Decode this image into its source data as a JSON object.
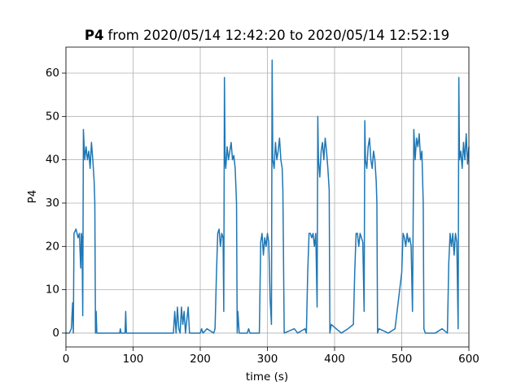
{
  "chart_data": {
    "type": "line",
    "title": {
      "name": "P4",
      "text": "from 2020/05/14 12:42:20 to 2020/05/14 12:52:19"
    },
    "x_label": "time (s)",
    "y_label": "P4",
    "xlim": [
      0,
      600
    ],
    "ylim": [
      -3.2,
      66
    ],
    "xticks": [
      0,
      100,
      200,
      300,
      400,
      500,
      600
    ],
    "yticks": [
      0,
      10,
      20,
      30,
      40,
      50,
      60
    ],
    "grid": true,
    "series": [
      {
        "color": "#1f77b4",
        "x": [
          0,
          5,
          8,
          10,
          11,
          12,
          15,
          18,
          20,
          22,
          23,
          24,
          25,
          26,
          28,
          30,
          32,
          34,
          36,
          38,
          40,
          42,
          43,
          44,
          45,
          46,
          80,
          81,
          82,
          88,
          89,
          90,
          160,
          162,
          164,
          166,
          168,
          170,
          172,
          174,
          176,
          178,
          182,
          184,
          200,
          202,
          204,
          210,
          220,
          222,
          224,
          226,
          228,
          230,
          232,
          234,
          235,
          236,
          237,
          238,
          240,
          242,
          244,
          246,
          248,
          250,
          252,
          254,
          255,
          256,
          258,
          270,
          272,
          274,
          288,
          290,
          292,
          294,
          296,
          298,
          300,
          302,
          304,
          306,
          307,
          308,
          310,
          312,
          314,
          316,
          318,
          320,
          322,
          323,
          325,
          340,
          345,
          356,
          358,
          360,
          362,
          364,
          366,
          368,
          370,
          372,
          374,
          375,
          376,
          378,
          380,
          382,
          384,
          386,
          388,
          390,
          392,
          393,
          395,
          410,
          420,
          428,
          430,
          432,
          434,
          436,
          438,
          440,
          442,
          444,
          445,
          446,
          448,
          450,
          452,
          454,
          456,
          458,
          460,
          462,
          463,
          464,
          466,
          480,
          490,
          500,
          502,
          504,
          506,
          508,
          510,
          512,
          514,
          516,
          518,
          520,
          522,
          524,
          526,
          528,
          530,
          532,
          533,
          535,
          550,
          560,
          568,
          570,
          572,
          574,
          576,
          578,
          580,
          582,
          584,
          585,
          586,
          588,
          590,
          592,
          594,
          596,
          598,
          600
        ],
        "values": [
          0,
          0,
          1,
          7,
          0,
          23,
          24,
          22,
          23,
          15,
          23,
          22,
          4,
          47,
          40,
          43,
          40,
          42,
          38,
          44,
          40,
          35,
          30,
          0,
          5,
          0,
          0,
          1,
          0,
          0,
          5,
          0,
          0,
          5,
          0,
          6,
          1,
          0,
          6,
          2,
          5,
          0,
          6,
          0,
          0,
          1,
          0,
          1,
          0,
          1,
          13,
          23,
          24,
          20,
          23,
          22,
          5,
          59,
          40,
          38,
          43,
          40,
          42,
          44,
          40,
          41,
          38,
          30,
          0,
          5,
          0,
          0,
          1,
          0,
          0,
          21,
          23,
          18,
          22,
          20,
          23,
          21,
          8,
          2,
          63,
          40,
          38,
          44,
          40,
          42,
          45,
          40,
          38,
          33,
          0,
          1,
          0,
          1,
          0,
          14,
          23,
          23,
          22,
          23,
          20,
          23,
          6,
          50,
          40,
          36,
          42,
          44,
          40,
          45,
          42,
          38,
          33,
          0,
          2,
          0,
          1,
          2,
          14,
          23,
          23,
          20,
          23,
          22,
          21,
          5,
          49,
          40,
          38,
          43,
          45,
          40,
          38,
          42,
          40,
          35,
          30,
          0,
          1,
          0,
          1,
          14,
          23,
          22,
          20,
          23,
          21,
          22,
          20,
          5,
          47,
          40,
          45,
          43,
          46,
          40,
          42,
          30,
          1,
          0,
          0,
          1,
          0,
          16,
          23,
          20,
          23,
          18,
          23,
          21,
          1,
          59,
          40,
          42,
          38,
          44,
          40,
          46,
          39,
          43
        ]
      }
    ]
  }
}
